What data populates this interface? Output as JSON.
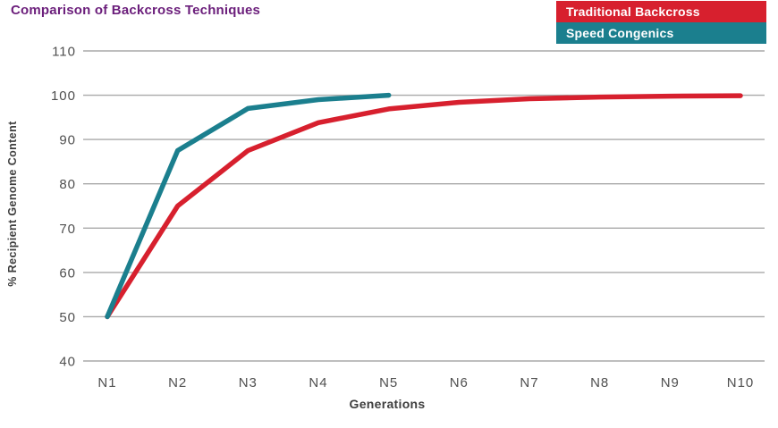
{
  "header": {
    "title": "Comparison of Backcross Techniques",
    "title_color": "#6B1E7B"
  },
  "chart_data": {
    "type": "line",
    "title": "Comparison of Backcross Techniques",
    "xlabel": "Generations",
    "ylabel": "% Recipient Genome Content",
    "categories": [
      "N1",
      "N2",
      "N3",
      "N4",
      "N5",
      "N6",
      "N7",
      "N8",
      "N9",
      "N10"
    ],
    "ylim": [
      40,
      110
    ],
    "ytick_step": 10,
    "yticks": [
      40,
      50,
      60,
      70,
      80,
      90,
      100,
      110
    ],
    "grid": true,
    "legend_position": "top-right",
    "series": [
      {
        "name": "Traditional Backcross",
        "color": "#D7202E",
        "values": [
          50,
          75,
          87.5,
          93.8,
          96.9,
          98.4,
          99.2,
          99.6,
          99.8,
          99.9
        ]
      },
      {
        "name": "Speed Congenics",
        "color": "#1B7F8E",
        "values": [
          50,
          87.5,
          97,
          99,
          100
        ]
      }
    ],
    "style": {
      "gridline_color": "#A9A9A9",
      "tick_label_color": "#4F4F4F",
      "line_width": 5.5
    }
  }
}
